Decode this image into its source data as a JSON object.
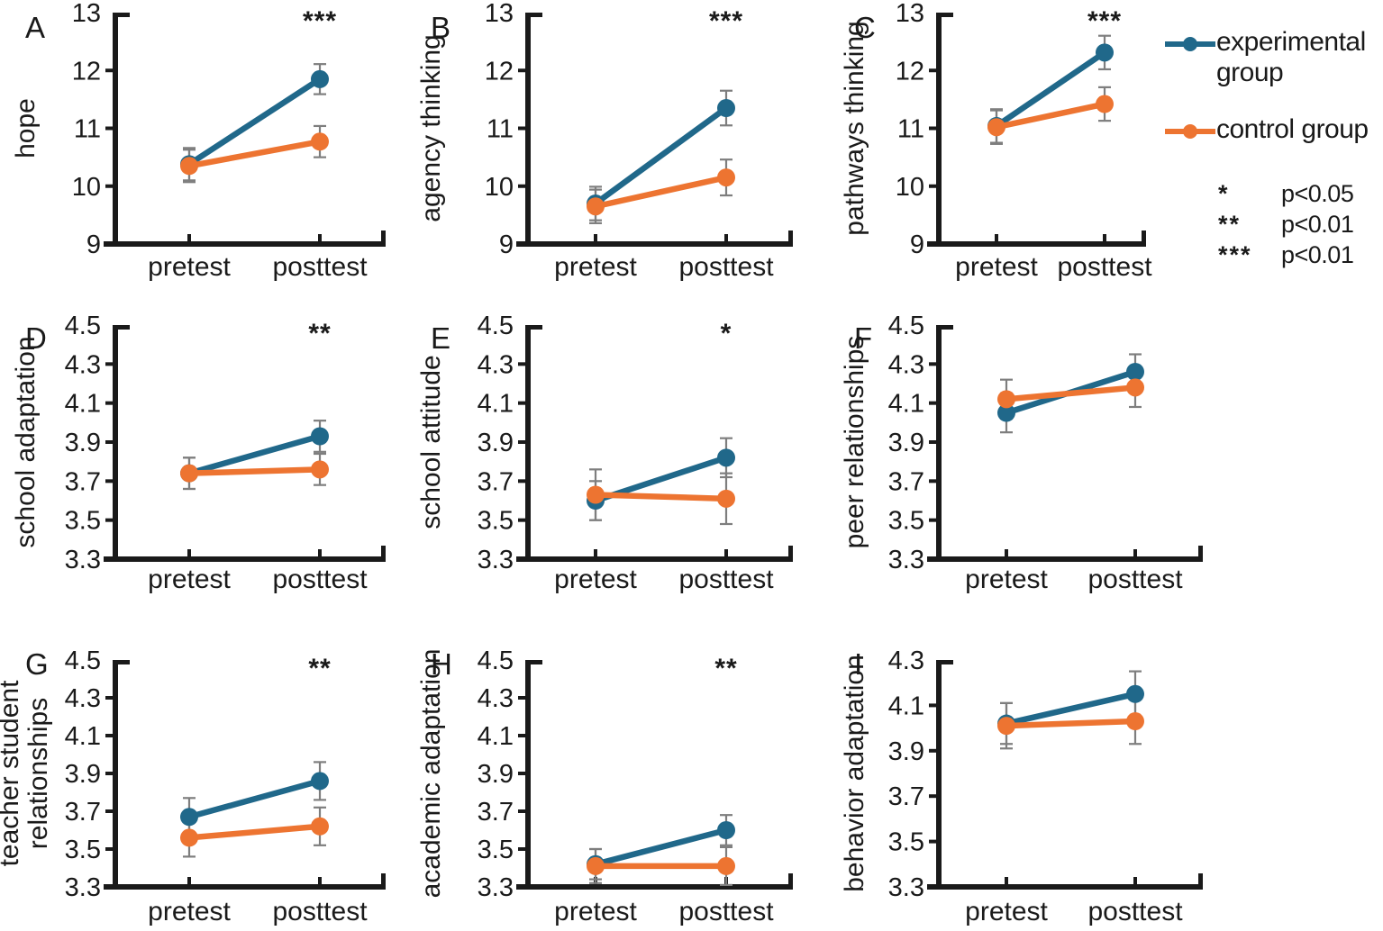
{
  "figure": {
    "colors": {
      "experimental": "#20688A",
      "control": "#ED7431",
      "error_bar": "#7E7E7E",
      "axis": "#1a1a1a"
    },
    "legend": {
      "position": "top-right-outside",
      "entries": [
        {
          "label": "experimental group",
          "series_key": "experimental"
        },
        {
          "label": "control group",
          "series_key": "control"
        }
      ]
    },
    "significance_key": [
      {
        "symbol": "*",
        "meaning": "p<0.05"
      },
      {
        "symbol": "**",
        "meaning": "p<0.01"
      },
      {
        "symbol": "***",
        "meaning": "p<0.01"
      }
    ]
  },
  "chart_data": [
    {
      "panel": "A",
      "type": "line",
      "ylabel": "hope",
      "ylabel_lines": [
        "hope"
      ],
      "categories": [
        "pretest",
        "posttest"
      ],
      "ylim": [
        9,
        13
      ],
      "yticks": [
        "9",
        "10",
        "11",
        "12",
        "13"
      ],
      "significance": "***",
      "series": [
        {
          "name": "experimental group",
          "values": [
            10.38,
            11.85
          ],
          "errors": [
            0.28,
            0.26
          ]
        },
        {
          "name": "control group",
          "values": [
            10.35,
            10.77
          ],
          "errors": [
            0.28,
            0.27
          ]
        }
      ]
    },
    {
      "panel": "B",
      "type": "line",
      "ylabel": "agency thinking",
      "ylabel_lines": [
        "agency thinking"
      ],
      "categories": [
        "pretest",
        "posttest"
      ],
      "ylim": [
        9,
        13
      ],
      "yticks": [
        "9",
        "10",
        "11",
        "12",
        "13"
      ],
      "significance": "***",
      "series": [
        {
          "name": "experimental group",
          "values": [
            9.7,
            11.35
          ],
          "errors": [
            0.29,
            0.3
          ]
        },
        {
          "name": "control group",
          "values": [
            9.65,
            10.15
          ],
          "errors": [
            0.29,
            0.31
          ]
        }
      ]
    },
    {
      "panel": "C",
      "type": "line",
      "ylabel": "pathways thinking",
      "ylabel_lines": [
        "pathways thinking"
      ],
      "categories": [
        "pretest",
        "posttest"
      ],
      "ylim": [
        9,
        13
      ],
      "yticks": [
        "9",
        "10",
        "11",
        "12",
        "13"
      ],
      "significance": "***",
      "series": [
        {
          "name": "experimental group",
          "values": [
            11.04,
            12.31
          ],
          "errors": [
            0.29,
            0.29
          ]
        },
        {
          "name": "control group",
          "values": [
            11.02,
            11.42
          ],
          "errors": [
            0.29,
            0.29
          ]
        }
      ]
    },
    {
      "panel": "D",
      "type": "line",
      "ylabel": "school adaptation",
      "ylabel_lines": [
        "school adaptation"
      ],
      "categories": [
        "pretest",
        "posttest"
      ],
      "ylim": [
        3.3,
        4.5
      ],
      "yticks": [
        "3.3",
        "3.5",
        "3.7",
        "3.9",
        "4.1",
        "4.3",
        "4.5"
      ],
      "significance": "**",
      "series": [
        {
          "name": "experimental group",
          "values": [
            3.74,
            3.93
          ],
          "errors": [
            0.08,
            0.08
          ]
        },
        {
          "name": "control group",
          "values": [
            3.74,
            3.76
          ],
          "errors": [
            0.08,
            0.08
          ]
        }
      ]
    },
    {
      "panel": "E",
      "type": "line",
      "ylabel": "school attitude",
      "ylabel_lines": [
        "school attitude"
      ],
      "categories": [
        "pretest",
        "posttest"
      ],
      "ylim": [
        3.3,
        4.5
      ],
      "yticks": [
        "3.3",
        "3.5",
        "3.7",
        "3.9",
        "4.1",
        "4.3",
        "4.5"
      ],
      "significance": "*",
      "series": [
        {
          "name": "experimental group",
          "values": [
            3.6,
            3.82
          ],
          "errors": [
            0.1,
            0.1
          ]
        },
        {
          "name": "control group",
          "values": [
            3.63,
            3.61
          ],
          "errors": [
            0.13,
            0.13
          ]
        }
      ]
    },
    {
      "panel": "F",
      "type": "line",
      "ylabel": "peer relationships",
      "ylabel_lines": [
        "peer relationships"
      ],
      "categories": [
        "pretest",
        "posttest"
      ],
      "ylim": [
        3.3,
        4.5
      ],
      "yticks": [
        "3.3",
        "3.5",
        "3.7",
        "3.9",
        "4.1",
        "4.3",
        "4.5"
      ],
      "significance": "",
      "series": [
        {
          "name": "experimental group",
          "values": [
            4.05,
            4.26
          ],
          "errors": [
            0.1,
            0.09
          ]
        },
        {
          "name": "control group",
          "values": [
            4.12,
            4.18
          ],
          "errors": [
            0.1,
            0.1
          ]
        }
      ]
    },
    {
      "panel": "G",
      "type": "line",
      "ylabel": "teacher student relationships",
      "ylabel_lines": [
        "teacher student",
        "relationships"
      ],
      "categories": [
        "pretest",
        "posttest"
      ],
      "ylim": [
        3.3,
        4.5
      ],
      "yticks": [
        "3.3",
        "3.5",
        "3.7",
        "3.9",
        "4.1",
        "4.3",
        "4.5"
      ],
      "significance": "**",
      "series": [
        {
          "name": "experimental group",
          "values": [
            3.67,
            3.86
          ],
          "errors": [
            0.1,
            0.1
          ]
        },
        {
          "name": "control group",
          "values": [
            3.56,
            3.62
          ],
          "errors": [
            0.1,
            0.1
          ]
        }
      ]
    },
    {
      "panel": "H",
      "type": "line",
      "ylabel": "academic adaptation",
      "ylabel_lines": [
        "academic adaptation"
      ],
      "categories": [
        "pretest",
        "posttest"
      ],
      "ylim": [
        3.3,
        4.5
      ],
      "yticks": [
        "3.3",
        "3.5",
        "3.7",
        "3.9",
        "4.1",
        "4.3",
        "4.5"
      ],
      "significance": "**",
      "series": [
        {
          "name": "experimental group",
          "values": [
            3.42,
            3.6
          ],
          "errors": [
            0.08,
            0.08
          ]
        },
        {
          "name": "control group",
          "values": [
            3.41,
            3.41
          ],
          "errors": [
            0.09,
            0.1
          ]
        }
      ]
    },
    {
      "panel": "I",
      "type": "line",
      "ylabel": "behavior adaptation",
      "ylabel_lines": [
        "behavior adaptation"
      ],
      "categories": [
        "pretest",
        "posttest"
      ],
      "ylim": [
        3.3,
        4.3
      ],
      "yticks": [
        "3.3",
        "3.5",
        "3.7",
        "3.9",
        "4.1",
        "4.3"
      ],
      "significance": "",
      "series": [
        {
          "name": "experimental group",
          "values": [
            4.02,
            4.15
          ],
          "errors": [
            0.09,
            0.1
          ]
        },
        {
          "name": "control group",
          "values": [
            4.01,
            4.03
          ],
          "errors": [
            0.1,
            0.1
          ]
        }
      ]
    }
  ]
}
